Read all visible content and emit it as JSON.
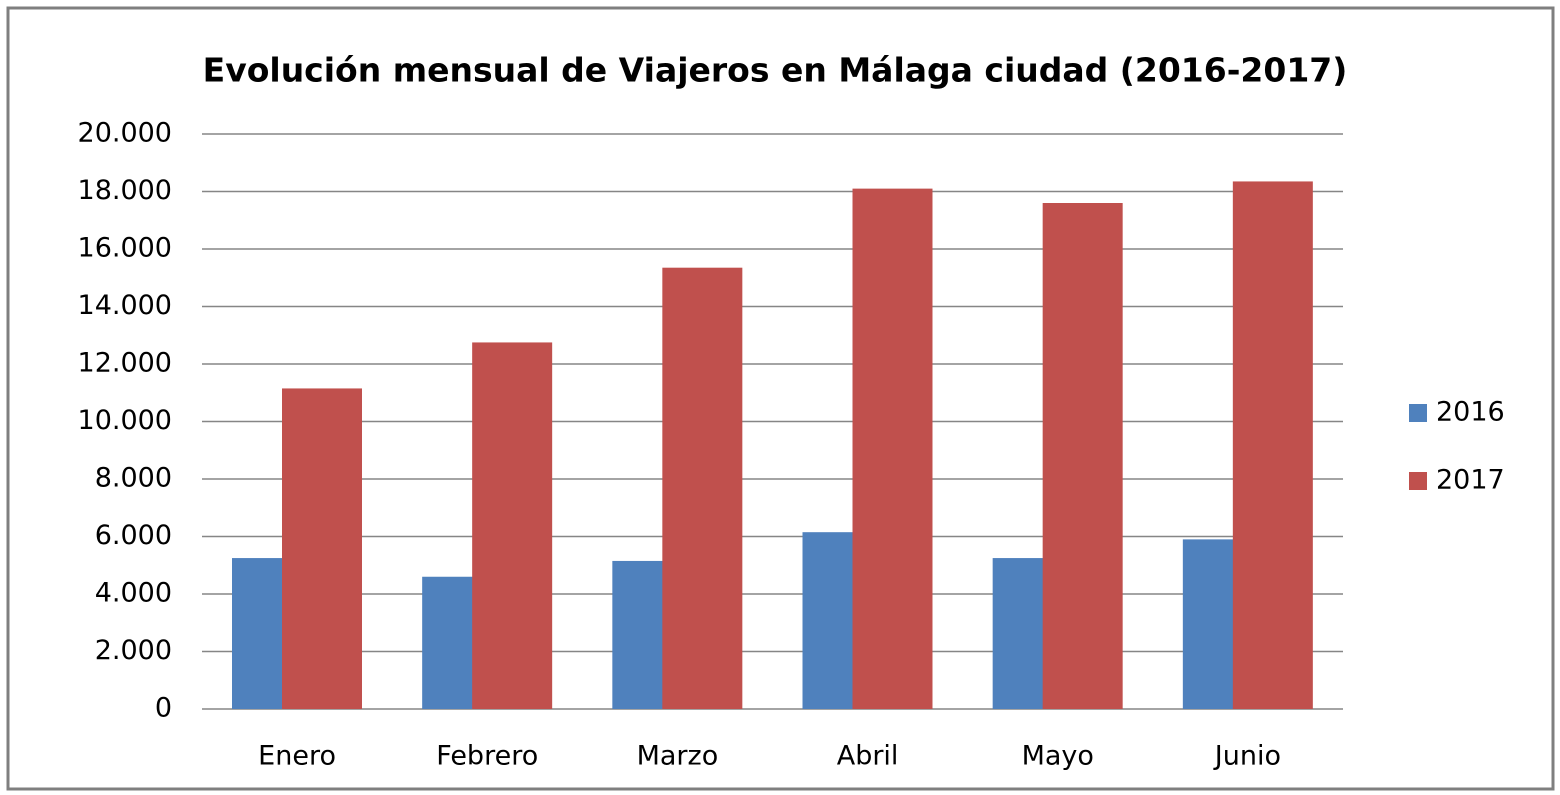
{
  "chart_data": {
    "type": "bar",
    "title": "Evolución mensual de Viajeros en Málaga ciudad (2016-2017)",
    "categories": [
      "Enero",
      "Febrero",
      "Marzo",
      "Abril",
      "Mayo",
      "Junio"
    ],
    "series": [
      {
        "name": "2016",
        "color": "#4f81bd",
        "values": [
          5250,
          4600,
          5150,
          6150,
          5250,
          5900
        ]
      },
      {
        "name": "2017",
        "color": "#c0504d",
        "values": [
          11150,
          12750,
          15350,
          18100,
          17600,
          18350
        ]
      }
    ],
    "ylim": [
      0,
      20000
    ],
    "yticks": [
      0,
      {
        "value": 2000,
        "label": "2.000"
      },
      {
        "value": 4000,
        "label": "4.000"
      },
      {
        "value": 6000,
        "label": "6.000"
      },
      {
        "value": 8000,
        "label": "8.000"
      },
      {
        "value": 10000,
        "label": "10.000"
      },
      {
        "value": 12000,
        "label": "12.000"
      },
      {
        "value": 14000,
        "label": "14.000"
      },
      {
        "value": 16000,
        "label": "16.000"
      },
      {
        "value": 18000,
        "label": "18.000"
      },
      {
        "value": 20000,
        "label": "20.000"
      }
    ],
    "grid": true,
    "legend": "right"
  }
}
